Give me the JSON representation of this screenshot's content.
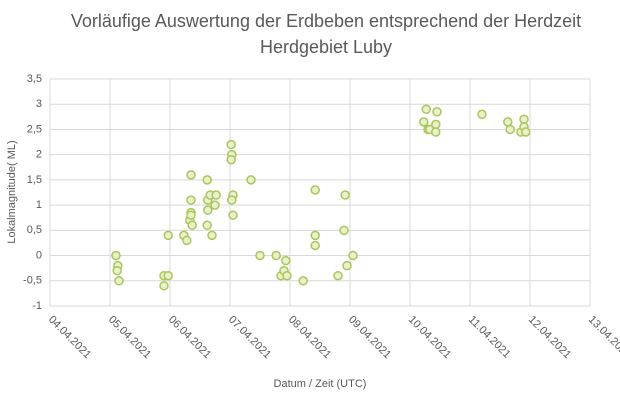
{
  "chart_data": {
    "type": "scatter",
    "title": "Vorläufige Auswertung der Erdbeben entsprechend der Herdzeit",
    "subtitle": "Herdgebiet Luby",
    "x_label": "Datum / Zeit (UTC)",
    "y_label": "Lokalmagnitude( ML)",
    "xlim": [
      4,
      13
    ],
    "xticks": [
      {
        "value": 4,
        "label": "04.04.2021"
      },
      {
        "value": 5,
        "label": "05.04.2021"
      },
      {
        "value": 6,
        "label": "06.04.2021"
      },
      {
        "value": 7,
        "label": "07.04.2021"
      },
      {
        "value": 8,
        "label": "08.04.2021"
      },
      {
        "value": 9,
        "label": "09.04.2021"
      },
      {
        "value": 10,
        "label": "10.04.2021"
      },
      {
        "value": 11,
        "label": "11.04.2021"
      },
      {
        "value": 12,
        "label": "12.04.2021"
      },
      {
        "value": 13,
        "label": "13.04.2021"
      }
    ],
    "ylim": [
      -1,
      3.5
    ],
    "yticks": [
      -1,
      {
        "value": -0.5,
        "label": "-0,5"
      },
      0,
      {
        "value": 0.5,
        "label": "0,5"
      },
      1,
      {
        "value": 1.5,
        "label": "1,5"
      },
      2,
      {
        "value": 2.5,
        "label": "2,5"
      },
      3,
      {
        "value": 3.5,
        "label": "3,5"
      }
    ],
    "grid": true,
    "color": "#a9c65a",
    "fill": "#e8f0cc",
    "x": [
      5.1,
      5.13,
      5.12,
      5.15,
      5.9,
      5.9,
      5.97,
      5.97,
      6.23,
      6.28,
      6.35,
      6.35,
      6.35,
      6.33,
      6.37,
      6.35,
      6.62,
      6.63,
      6.63,
      6.67,
      6.77,
      6.75,
      6.62,
      6.7,
      7.02,
      7.03,
      7.02,
      7.05,
      7.03,
      7.05,
      7.35,
      7.5,
      7.77,
      7.85,
      7.9,
      7.95,
      7.93,
      8.22,
      8.42,
      8.42,
      8.42,
      8.8,
      8.9,
      8.92,
      8.95,
      9.05,
      10.27,
      10.23,
      10.3,
      10.33,
      10.45,
      10.43,
      10.43,
      11.2,
      11.63,
      11.67,
      11.85,
      11.9,
      11.9,
      11.93
    ],
    "values": [
      0,
      -0.2,
      -0.3,
      -0.5,
      -0.4,
      -0.6,
      -0.4,
      0.4,
      0.4,
      0.3,
      1.6,
      1.1,
      0.85,
      0.7,
      0.6,
      0.8,
      1.5,
      1.1,
      0.9,
      1.2,
      1.2,
      1.0,
      0.6,
      0.4,
      2.2,
      2.0,
      1.9,
      1.2,
      1.1,
      0.8,
      1.5,
      0,
      0,
      -0.4,
      -0.3,
      -0.4,
      -0.1,
      -0.5,
      1.3,
      0.4,
      0.2,
      -0.4,
      0.5,
      1.2,
      -0.2,
      0,
      2.9,
      2.65,
      2.5,
      2.5,
      2.85,
      2.6,
      2.45,
      2.8,
      2.65,
      2.5,
      2.45,
      2.7,
      2.55,
      2.45
    ]
  }
}
